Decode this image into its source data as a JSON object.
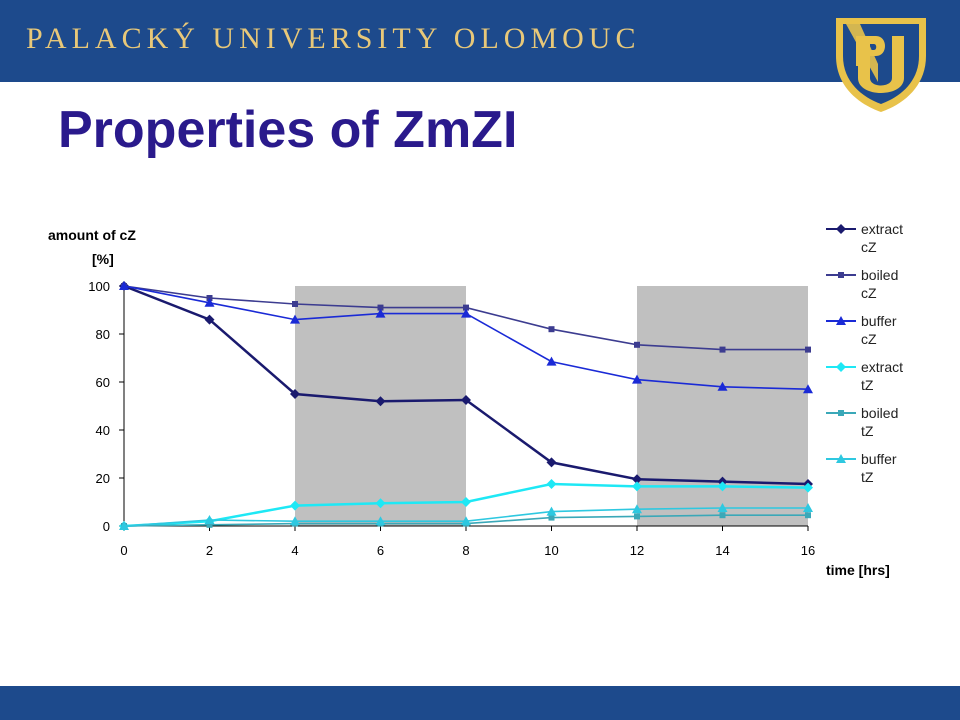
{
  "header": {
    "university_name": "PALACKÝ UNIVERSITY OLOMOUC",
    "background_color": "#1d4a8c",
    "text_color": "#e8c879",
    "logo_icon": "university-crest-icon"
  },
  "slide": {
    "title": "Properties of ZmZI",
    "title_color": "#2a1a8c"
  },
  "footer": {
    "background_color": "#1d4a8c"
  },
  "chart_data": {
    "type": "line",
    "ylabel_line1": "amount of cZ",
    "ylabel_line2": "[%]",
    "xlabel": "time [hrs]",
    "xlim": [
      0,
      16
    ],
    "ylim": [
      0,
      100
    ],
    "x_ticks": [
      0,
      2,
      4,
      6,
      8,
      10,
      12,
      14,
      16
    ],
    "y_ticks": [
      0,
      20,
      40,
      60,
      80,
      100
    ],
    "shaded_intervals": [
      [
        4,
        8
      ],
      [
        12,
        16
      ]
    ],
    "shade_color": "#c0c0c0",
    "grid": false,
    "legend_position": "right",
    "x": [
      0,
      2,
      4,
      6,
      8,
      10,
      12,
      14,
      16
    ],
    "series": [
      {
        "name": "extract cZ",
        "legend_lines": [
          "extract",
          "cZ"
        ],
        "color": "#1a1a6e",
        "marker": "diamond",
        "values": [
          100,
          86,
          55,
          52,
          52.5,
          26.5,
          19.5,
          18.5,
          17.5
        ]
      },
      {
        "name": "boiled cZ",
        "legend_lines": [
          "boiled",
          "cZ"
        ],
        "color": "#3c3c90",
        "marker": "square",
        "values": [
          100,
          95,
          92.5,
          91,
          91,
          82,
          75.5,
          73.5,
          73.5
        ]
      },
      {
        "name": "buffer cZ",
        "legend_lines": [
          "buffer",
          "cZ"
        ],
        "color": "#1a2ad6",
        "marker": "triangle",
        "values": [
          100,
          93,
          86,
          88.5,
          88.5,
          68.5,
          61,
          58,
          57
        ]
      },
      {
        "name": "extract tZ",
        "legend_lines": [
          "extract",
          "tZ"
        ],
        "color": "#1ee8f5",
        "marker": "diamond",
        "values": [
          0,
          2,
          8.5,
          9.5,
          10,
          17.5,
          16.5,
          16.5,
          16
        ]
      },
      {
        "name": "boiled tZ",
        "legend_lines": [
          "boiled",
          "tZ"
        ],
        "color": "#3aa8b8",
        "marker": "square",
        "values": [
          0,
          0.5,
          1,
          1,
          1,
          3.5,
          4,
          4.5,
          4.5
        ]
      },
      {
        "name": "buffer tZ",
        "legend_lines": [
          "buffer",
          "tZ"
        ],
        "color": "#2ec8e0",
        "marker": "triangle",
        "values": [
          0,
          2.5,
          2,
          2,
          2,
          6,
          7,
          7.5,
          7.5
        ]
      }
    ]
  }
}
